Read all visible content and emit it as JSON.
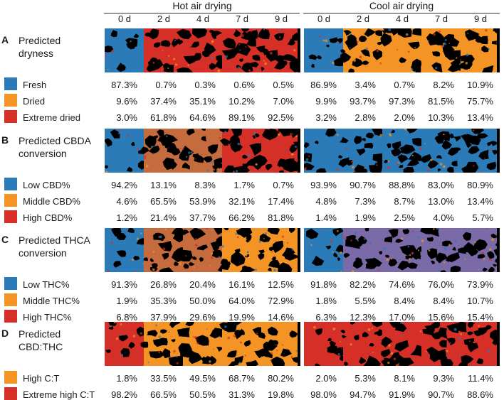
{
  "header": {
    "groups": [
      {
        "label": "Hot air drying"
      },
      {
        "label": "Cool air drying"
      }
    ],
    "days": [
      "0 d",
      "2 d",
      "4 d",
      "7 d",
      "9 d",
      "0 d",
      "2 d",
      "4 d",
      "7 d",
      "9 d"
    ]
  },
  "colors": {
    "blue": "#2b7bb9",
    "orange": "#f39424",
    "red": "#d62f27",
    "brown": "#c56b3e",
    "purple": "#7a6aa8",
    "black": "#000000"
  },
  "panels": [
    {
      "letter": "A",
      "title_lines": [
        "Predicted",
        "dryness"
      ],
      "strip_colors": [
        "blue",
        "red",
        "red",
        "red",
        "red",
        "blue",
        "orange",
        "orange",
        "orange",
        "orange"
      ],
      "categories": [
        {
          "label": "Fresh",
          "color": "#2b7bb9",
          "values": [
            "87.3%",
            "0.7%",
            "0.3%",
            "0.6%",
            "0.5%",
            "86.9%",
            "3.4%",
            "0.7%",
            "8.2%",
            "10.9%"
          ]
        },
        {
          "label": "Dried",
          "color": "#f39424",
          "values": [
            "9.6%",
            "37.4%",
            "35.1%",
            "10.2%",
            "7.0%",
            "9.9%",
            "93.7%",
            "97.3%",
            "81.5%",
            "75.7%"
          ]
        },
        {
          "label": "Extreme dried",
          "color": "#d62f27",
          "values": [
            "3.0%",
            "61.8%",
            "64.6%",
            "89.1%",
            "92.5%",
            "3.2%",
            "2.8%",
            "2.0%",
            "10.3%",
            "13.4%"
          ]
        }
      ]
    },
    {
      "letter": "B",
      "title_lines": [
        "Predicted CBDA",
        "conversion"
      ],
      "strip_colors": [
        "blue",
        "brown",
        "brown",
        "red",
        "red",
        "blue",
        "blue",
        "blue",
        "blue",
        "blue"
      ],
      "categories": [
        {
          "label": "Low CBD%",
          "color": "#2b7bb9",
          "values": [
            "94.2%",
            "13.1%",
            "8.3%",
            "1.7%",
            "0.7%",
            "93.9%",
            "90.7%",
            "88.8%",
            "83.0%",
            "80.9%"
          ]
        },
        {
          "label": "Middle CBD%",
          "color": "#f39424",
          "values": [
            "4.6%",
            "65.5%",
            "53.9%",
            "32.1%",
            "17.4%",
            "4.8%",
            "7.3%",
            "8.7%",
            "13.0%",
            "13.4%"
          ]
        },
        {
          "label": "High CBD%",
          "color": "#d62f27",
          "values": [
            "1.2%",
            "21.4%",
            "37.7%",
            "66.2%",
            "81.8%",
            "1.4%",
            "1.9%",
            "2.5%",
            "4.0%",
            "5.7%"
          ]
        }
      ]
    },
    {
      "letter": "C",
      "title_lines": [
        "Predicted THCA",
        "conversion"
      ],
      "strip_colors": [
        "blue",
        "brown",
        "brown",
        "orange",
        "orange",
        "blue",
        "purple",
        "purple",
        "purple",
        "purple"
      ],
      "categories": [
        {
          "label": "Low THC%",
          "color": "#2b7bb9",
          "values": [
            "91.3%",
            "26.8%",
            "20.4%",
            "16.1%",
            "12.5%",
            "91.8%",
            "82.2%",
            "74.6%",
            "76.0%",
            "73.9%"
          ]
        },
        {
          "label": "Middle THC%",
          "color": "#f39424",
          "values": [
            "1.9%",
            "35.3%",
            "50.0%",
            "64.0%",
            "72.9%",
            "1.8%",
            "5.5%",
            "8.4%",
            "8.4%",
            "10.7%"
          ]
        },
        {
          "label": "High THC%",
          "color": "#d62f27",
          "values": [
            "6.8%",
            "37.9%",
            "29.6%",
            "19.9%",
            "14.6%",
            "6.3%",
            "12.3%",
            "17.0%",
            "15.6%",
            "15.4%"
          ]
        }
      ]
    },
    {
      "letter": "D",
      "title_lines": [
        "Predicted",
        "CBD:THC"
      ],
      "strip_colors": [
        "red",
        "orange",
        "orange",
        "orange",
        "orange",
        "red",
        "red",
        "red",
        "red",
        "red"
      ],
      "categories": [
        {
          "label": "High C:T",
          "color": "#f39424",
          "values": [
            "1.8%",
            "33.5%",
            "49.5%",
            "68.7%",
            "80.2%",
            "2.0%",
            "5.3%",
            "8.1%",
            "9.3%",
            "11.4%"
          ]
        },
        {
          "label": "Extreme high C:T",
          "color": "#d62f27",
          "values": [
            "98.2%",
            "66.5%",
            "50.5%",
            "31.3%",
            "19.8%",
            "98.0%",
            "94.7%",
            "91.9%",
            "90.7%",
            "88.6%"
          ]
        }
      ]
    }
  ]
}
